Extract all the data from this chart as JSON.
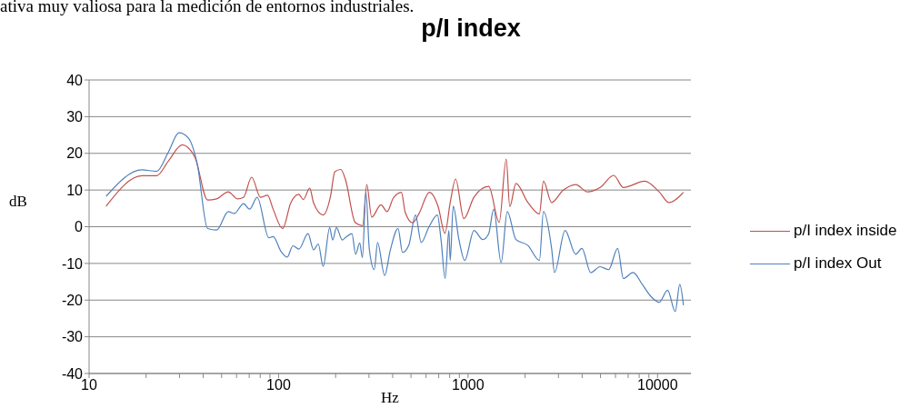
{
  "chart_data": {
    "type": "line",
    "title": "p/I index",
    "xlabel": "Hz",
    "ylabel": "dB",
    "annotations": [
      "ativa muy valiosa para la medición de entornos industriales."
    ],
    "log": "x",
    "grid": "y",
    "legend": "right",
    "marker": "none",
    "line_style": "solid",
    "xlim": [
      10,
      15000
    ],
    "xticks": [
      10,
      {
        "value": 20,
        "label": null
      },
      {
        "value": 30,
        "label": null
      },
      {
        "value": 40,
        "label": null
      },
      {
        "value": 50,
        "label": null
      },
      {
        "value": 60,
        "label": null
      },
      {
        "value": 70,
        "label": null
      },
      {
        "value": 80,
        "label": null
      },
      {
        "value": 90,
        "label": null
      },
      100,
      {
        "value": 200,
        "label": null
      },
      {
        "value": 300,
        "label": null
      },
      {
        "value": 400,
        "label": null
      },
      {
        "value": 500,
        "label": null
      },
      {
        "value": 600,
        "label": null
      },
      {
        "value": 700,
        "label": null
      },
      {
        "value": 800,
        "label": null
      },
      {
        "value": 900,
        "label": null
      },
      1000,
      {
        "value": 2000,
        "label": null
      },
      {
        "value": 3000,
        "label": null
      },
      {
        "value": 4000,
        "label": null
      },
      {
        "value": 5000,
        "label": null
      },
      {
        "value": 6000,
        "label": null
      },
      {
        "value": 7000,
        "label": null
      },
      {
        "value": 8000,
        "label": null
      },
      {
        "value": 9000,
        "label": null
      },
      10000
    ],
    "ylim": [
      -40,
      40
    ],
    "yticks": [
      -40,
      -30,
      -20,
      -10,
      0,
      10,
      20,
      30,
      40
    ],
    "series": [
      {
        "name": "p/I index inside",
        "color": "#c0504d",
        "x": [
          12.3,
          19,
          22.7,
          26.3,
          31,
          36.2,
          42.2,
          47.1,
          54.3,
          60.6,
          65.3,
          72.1,
          80.3,
          87.4,
          93.6,
          105,
          116,
          128,
          135,
          146,
          153,
          172,
          188,
          198,
          213,
          225,
          254,
          278,
          292,
          310,
          347,
          374,
          403,
          445,
          466,
          510,
          550,
          625,
          695,
          755,
          805,
          860,
          950,
          1075,
          1285,
          1460,
          1590,
          1660,
          1790,
          2070,
          2380,
          2500,
          2760,
          3170,
          3700,
          4270,
          4980,
          5870,
          6600,
          8560,
          10200,
          11500,
          13700
        ],
        "values": [
          5.6,
          13.9,
          13.9,
          18,
          22.3,
          18.9,
          7.3,
          7.6,
          9.5,
          7.6,
          8,
          13.5,
          8,
          8.6,
          4.8,
          -0.5,
          6.5,
          8.8,
          7.4,
          10.5,
          6.5,
          3.2,
          8.3,
          15,
          15.6,
          13,
          1.1,
          0.3,
          11.5,
          2.6,
          6,
          4.1,
          7.8,
          9.4,
          3.9,
          1.1,
          3.5,
          9.4,
          5.5,
          -1.8,
          6.6,
          13,
          2.2,
          8.1,
          11,
          1.2,
          18.4,
          5.5,
          11.8,
          6.6,
          3.5,
          12.4,
          6.6,
          9.9,
          11.5,
          9.5,
          10.7,
          14,
          10.7,
          12.4,
          9.5,
          6.6,
          9.4
        ]
      },
      {
        "name": "p/I index Out",
        "color": "#4f81bd",
        "x": [
          12.3,
          19,
          22.7,
          26.3,
          29.8,
          33.4,
          37.2,
          42.2,
          47.1,
          54.3,
          58.4,
          65.3,
          70.3,
          77.1,
          88.8,
          93.6,
          102.9,
          111,
          119,
          128,
          143,
          153,
          162,
          172,
          186,
          193,
          202,
          217,
          225,
          244,
          255,
          268,
          277,
          289,
          301,
          320,
          333,
          363,
          388,
          427,
          451,
          487,
          528,
          566,
          620,
          689,
          720,
          757,
          792,
          805,
          835,
          895,
          960,
          1075,
          1195,
          1285,
          1365,
          1495,
          1610,
          1790,
          2070,
          2380,
          2500,
          2760,
          2860,
          3250,
          3700,
          3990,
          4440,
          4980,
          5520,
          6160,
          6600,
          7430,
          8300,
          9230,
          10200,
          11300,
          12400,
          13100,
          13700
        ],
        "values": [
          8.3,
          15.5,
          15.1,
          20.5,
          25.6,
          24.2,
          17.2,
          -0.5,
          -0.9,
          4.1,
          3.6,
          6.3,
          4.8,
          8,
          -3,
          -2.7,
          -6.7,
          -8.3,
          -5.2,
          -6.1,
          -1.9,
          -6.3,
          -4.7,
          -10.8,
          -0.3,
          -3.6,
          -0.3,
          -3.6,
          -3,
          -1.9,
          -7.5,
          -4.4,
          -8.4,
          9.4,
          -5.9,
          -11.7,
          -4.3,
          -13.3,
          -6.6,
          -0.5,
          -7,
          -5,
          3.2,
          -4.3,
          -0.2,
          3.2,
          -3.5,
          -14.1,
          -1,
          -9.2,
          5.6,
          -3.5,
          -9.2,
          -1,
          -3.5,
          -1.9,
          4.8,
          -9.8,
          4.1,
          -3.5,
          -5.1,
          -9.2,
          4.1,
          -5.9,
          -12.5,
          -1,
          -7.5,
          -5.9,
          -12.5,
          -10.9,
          -11.7,
          -5.9,
          -14.1,
          -12.5,
          -15.7,
          -19,
          -20.6,
          -17.3,
          -23.1,
          -15.7,
          -21.4
        ]
      }
    ]
  }
}
